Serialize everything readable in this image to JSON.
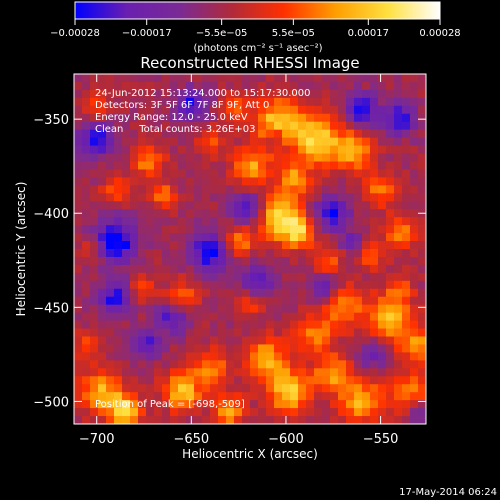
{
  "chart_data": {
    "type": "heatmap",
    "title": "Reconstructed RHESSI Image",
    "xlabel": "Heliocentric X (arcsec)",
    "ylabel": "Heliocentric Y (arcsec)",
    "xlim": [
      -712,
      -526
    ],
    "ylim": [
      -512,
      -326
    ],
    "x_ticks": [
      -700,
      -650,
      -600,
      -550
    ],
    "x_tick_labels": [
      "−700",
      "−650",
      "−600",
      "−550"
    ],
    "y_ticks": [
      -350,
      -400,
      -450,
      -500
    ],
    "y_tick_labels": [
      "−350",
      "−400",
      "−450",
      "−500"
    ],
    "colorbar": {
      "range": [
        -0.00028,
        0.00028
      ],
      "ticks": [
        -0.00028,
        -0.00017,
        -5.5e-05,
        5.5e-05,
        0.00017,
        0.00028
      ],
      "tick_labels": [
        "−0.00028",
        "−0.00017",
        "−5.5e−05",
        "5.5e−05",
        "0.00017",
        "0.00028"
      ],
      "unit_label": "(photons cm⁻² s⁻¹ asec⁻²)",
      "colors": [
        "#0000ff",
        "#6a1fb0",
        "#7a2a95",
        "#b02a3a",
        "#ff3000",
        "#ff9e00",
        "#ffe040",
        "#ffffff"
      ]
    },
    "annotations": [
      "24-Jun-2012 15:13:24.000 to 15:17:30.000",
      "Detectors: 3F 5F 6F 7F 8F 9F, Att 0",
      "Energy Range: 12.0 - 25.0 keV",
      "Clean     Total counts: 3.26E+03"
    ],
    "peak_label": "Position of Peak = [-698,-509]",
    "peak_position": [
      -698,
      -509
    ],
    "grid": false,
    "background_level": -6e-05,
    "hotspots": [
      {
        "x": -604,
        "y": -352,
        "r": 9,
        "v": 0.00024
      },
      {
        "x": -583,
        "y": -361,
        "r": 9,
        "v": 0.00025
      },
      {
        "x": -563,
        "y": -367,
        "r": 7,
        "v": 0.0002
      },
      {
        "x": -618,
        "y": -375,
        "r": 7,
        "v": 0.00019
      },
      {
        "x": -596,
        "y": -382,
        "r": 6,
        "v": 0.00018
      },
      {
        "x": -604,
        "y": -402,
        "r": 8,
        "v": 0.00026
      },
      {
        "x": -593,
        "y": -410,
        "r": 6,
        "v": 0.00022
      },
      {
        "x": -625,
        "y": -415,
        "r": 6,
        "v": 0.00016
      },
      {
        "x": -673,
        "y": -372,
        "r": 6,
        "v": 0.00017
      },
      {
        "x": -665,
        "y": -390,
        "r": 5,
        "v": 0.00014
      },
      {
        "x": -690,
        "y": -388,
        "r": 5,
        "v": 0.00012
      },
      {
        "x": -550,
        "y": -388,
        "r": 6,
        "v": 0.00015
      },
      {
        "x": -540,
        "y": -410,
        "r": 6,
        "v": 0.00016
      },
      {
        "x": -555,
        "y": -422,
        "r": 5,
        "v": 0.00014
      },
      {
        "x": -578,
        "y": -425,
        "r": 5,
        "v": 0.00013
      },
      {
        "x": -570,
        "y": -450,
        "r": 8,
        "v": 0.00017
      },
      {
        "x": -545,
        "y": -455,
        "r": 8,
        "v": 0.00022
      },
      {
        "x": -530,
        "y": -470,
        "r": 7,
        "v": 0.00018
      },
      {
        "x": -585,
        "y": -465,
        "r": 7,
        "v": 0.00015
      },
      {
        "x": -610,
        "y": -478,
        "r": 8,
        "v": 0.0002
      },
      {
        "x": -598,
        "y": -495,
        "r": 8,
        "v": 0.00024
      },
      {
        "x": -575,
        "y": -485,
        "r": 7,
        "v": 0.00019
      },
      {
        "x": -560,
        "y": -500,
        "r": 8,
        "v": 0.00021
      },
      {
        "x": -535,
        "y": -495,
        "r": 7,
        "v": 0.00017
      },
      {
        "x": -640,
        "y": -482,
        "r": 7,
        "v": 0.00016
      },
      {
        "x": -655,
        "y": -495,
        "r": 7,
        "v": 0.00023
      },
      {
        "x": -630,
        "y": -505,
        "r": 6,
        "v": 0.00019
      },
      {
        "x": -698,
        "y": -495,
        "r": 8,
        "v": 0.0002
      },
      {
        "x": -685,
        "y": -505,
        "r": 6,
        "v": 0.00026
      },
      {
        "x": -705,
        "y": -470,
        "r": 5,
        "v": 0.00013
      },
      {
        "x": -655,
        "y": -445,
        "r": 6,
        "v": 0.00015
      },
      {
        "x": -676,
        "y": -440,
        "r": 5,
        "v": 0.00011
      },
      {
        "x": -700,
        "y": -345,
        "r": 6,
        "v": 0.00012
      },
      {
        "x": -627,
        "y": -345,
        "r": 5,
        "v": 0.00013
      },
      {
        "x": -640,
        "y": -362,
        "r": 5,
        "v": 0.00012
      },
      {
        "x": -540,
        "y": -440,
        "r": 5,
        "v": 0.00012
      },
      {
        "x": -620,
        "y": -448,
        "r": 5,
        "v": 0.00012
      },
      {
        "x": -703,
        "y": -420,
        "r": 5,
        "v": 0.0001
      }
    ],
    "coldspots": [
      {
        "x": -690,
        "y": -415,
        "r": 8,
        "v": -0.00025
      },
      {
        "x": -700,
        "y": -360,
        "r": 7,
        "v": -0.00022
      },
      {
        "x": -640,
        "y": -420,
        "r": 7,
        "v": -0.00024
      },
      {
        "x": -620,
        "y": -398,
        "r": 6,
        "v": -0.0002
      },
      {
        "x": -575,
        "y": -400,
        "r": 6,
        "v": -0.00022
      },
      {
        "x": -560,
        "y": -345,
        "r": 6,
        "v": -0.00021
      },
      {
        "x": -540,
        "y": -350,
        "r": 6,
        "v": -0.0002
      },
      {
        "x": -650,
        "y": -343,
        "r": 6,
        "v": -0.00019
      },
      {
        "x": -660,
        "y": -455,
        "r": 6,
        "v": -0.00018
      },
      {
        "x": -615,
        "y": -435,
        "r": 6,
        "v": -0.00018
      },
      {
        "x": -580,
        "y": -440,
        "r": 5,
        "v": -0.00017
      },
      {
        "x": -690,
        "y": -445,
        "r": 6,
        "v": -0.00021
      },
      {
        "x": -673,
        "y": -470,
        "r": 5,
        "v": -0.00016
      },
      {
        "x": -555,
        "y": -475,
        "r": 5,
        "v": -0.00014
      },
      {
        "x": -530,
        "y": -505,
        "r": 4,
        "v": -0.00012
      },
      {
        "x": -605,
        "y": -360,
        "r": 4,
        "v": -0.00012
      },
      {
        "x": -565,
        "y": -415,
        "r": 4,
        "v": -0.00014
      }
    ]
  },
  "footer_date": "17-May-2014 06:24"
}
